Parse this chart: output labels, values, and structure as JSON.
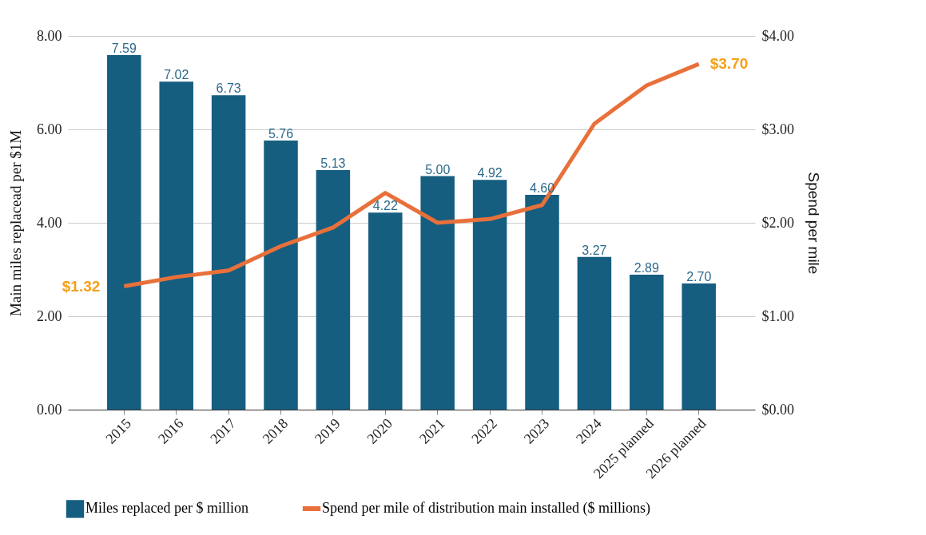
{
  "chart_data": {
    "type": "bar",
    "categories": [
      "2015",
      "2016",
      "2017",
      "2018",
      "2019",
      "2020",
      "2021",
      "2022",
      "2023",
      "2024",
      "2025 planned",
      "2026 planned"
    ],
    "ylabel": "Main miles replacead per $1M",
    "y2label": "Spend per mile",
    "ylim": [
      0,
      8
    ],
    "yticks": [
      {
        "value": 0,
        "label": "0.00"
      },
      {
        "value": 2,
        "label": "2.00"
      },
      {
        "value": 4,
        "label": "4.00"
      },
      {
        "value": 6,
        "label": "6.00"
      },
      {
        "value": 8,
        "label": "8.00"
      }
    ],
    "y2lim": [
      0,
      4
    ],
    "y2ticks": [
      {
        "value": 0,
        "label": "$0.00"
      },
      {
        "value": 1,
        "label": "$1.00"
      },
      {
        "value": 2,
        "label": "$2.00"
      },
      {
        "value": 3,
        "label": "$3.00"
      },
      {
        "value": 4,
        "label": "$4.00"
      }
    ],
    "grid": "y",
    "legend": "bottom",
    "series": [
      {
        "name": "Miles replaced per $ million",
        "color": "#165e80",
        "values": [
          7.59,
          7.02,
          6.73,
          5.76,
          5.13,
          4.22,
          5.0,
          4.92,
          4.6,
          3.27,
          2.89,
          2.7
        ],
        "value_labels": [
          "7.59",
          "7.02",
          "6.73",
          "5.76",
          "5.13",
          "4.22",
          "5.00",
          "4.92",
          "4.60",
          "3.27",
          "2.89",
          "2.70"
        ]
      },
      {
        "name": "Spend per mile of distribution main installed ($ millions)",
        "type": "line",
        "axis": "y2",
        "color": "#e8703a",
        "values": [
          1.32,
          1.42,
          1.49,
          1.75,
          1.95,
          2.32,
          2.0,
          2.04,
          2.19,
          3.06,
          3.47,
          3.7
        ],
        "value_labels": [
          "$1.32",
          null,
          null,
          null,
          null,
          null,
          null,
          null,
          null,
          null,
          null,
          "$3.70"
        ]
      }
    ]
  }
}
